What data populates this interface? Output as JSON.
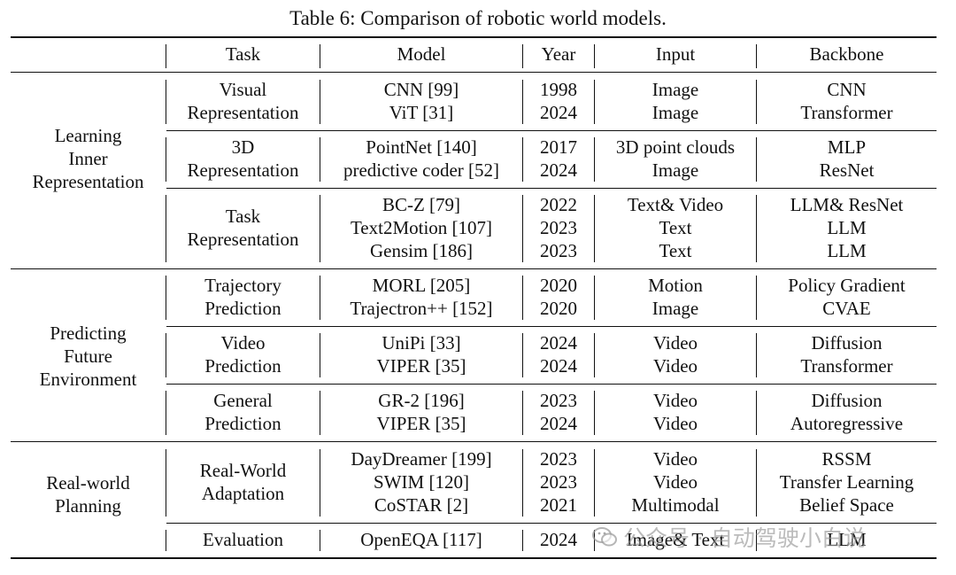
{
  "caption": "Table 6: Comparison of robotic world models.",
  "headers": [
    "Task",
    "Model",
    "Year",
    "Input",
    "Backbone"
  ],
  "categories": [
    [
      "Learning",
      "Inner",
      "Representation"
    ],
    [
      "Predicting",
      "Future",
      "Environment"
    ],
    [
      "Real-world",
      "Planning"
    ]
  ],
  "groups": [
    {
      "task": [
        "Visual",
        "Representation"
      ],
      "rows": [
        {
          "model": "CNN [99]",
          "year": "1998",
          "input": "Image",
          "backbone": "CNN"
        },
        {
          "model": "ViT [31]",
          "year": "2024",
          "input": "Image",
          "backbone": "Transformer"
        }
      ]
    },
    {
      "task": [
        "3D",
        "Representation"
      ],
      "rows": [
        {
          "model": "PointNet [140]",
          "year": "2017",
          "input": "3D point clouds",
          "backbone": "MLP"
        },
        {
          "model": "predictive coder [52]",
          "year": "2024",
          "input": "Image",
          "backbone": "ResNet"
        }
      ]
    },
    {
      "task": [
        "Task",
        "Representation"
      ],
      "rows": [
        {
          "model": "BC-Z [79]",
          "year": "2022",
          "input": "Text& Video",
          "backbone": "LLM& ResNet"
        },
        {
          "model": "Text2Motion [107]",
          "year": "2023",
          "input": "Text",
          "backbone": "LLM"
        },
        {
          "model": "Gensim [186]",
          "year": "2023",
          "input": "Text",
          "backbone": "LLM"
        }
      ]
    },
    {
      "task": [
        "Trajectory",
        "Prediction"
      ],
      "rows": [
        {
          "model": "MORL [205]",
          "year": "2020",
          "input": "Motion",
          "backbone": "Policy Gradient"
        },
        {
          "model": "Trajectron++ [152]",
          "year": "2020",
          "input": "Image",
          "backbone": "CVAE"
        }
      ]
    },
    {
      "task": [
        "Video",
        "Prediction"
      ],
      "rows": [
        {
          "model": "UniPi [33]",
          "year": "2024",
          "input": "Video",
          "backbone": "Diffusion"
        },
        {
          "model": "VIPER [35]",
          "year": "2024",
          "input": "Video",
          "backbone": "Transformer"
        }
      ]
    },
    {
      "task": [
        "General",
        "Prediction"
      ],
      "rows": [
        {
          "model": "GR-2 [196]",
          "year": "2023",
          "input": "Video",
          "backbone": "Diffusion"
        },
        {
          "model": "VIPER [35]",
          "year": "2024",
          "input": "Video",
          "backbone": "Autoregressive"
        }
      ]
    },
    {
      "task": [
        "Real-World",
        "Adaptation"
      ],
      "rows": [
        {
          "model": "DayDreamer [199]",
          "year": "2023",
          "input": "Video",
          "backbone": "RSSM"
        },
        {
          "model": "SWIM [120]",
          "year": "2023",
          "input": "Video",
          "backbone": "Transfer Learning"
        },
        {
          "model": "CoSTAR [2]",
          "year": "2021",
          "input": "Multimodal",
          "backbone": "Belief Space"
        }
      ]
    },
    {
      "task": [
        "Evaluation"
      ],
      "rows": [
        {
          "model": "OpenEQA [117]",
          "year": "2024",
          "input": "Image& Text",
          "backbone": "LLM"
        }
      ]
    }
  ],
  "watermark": "公众号 · 自动驾驶小白说"
}
